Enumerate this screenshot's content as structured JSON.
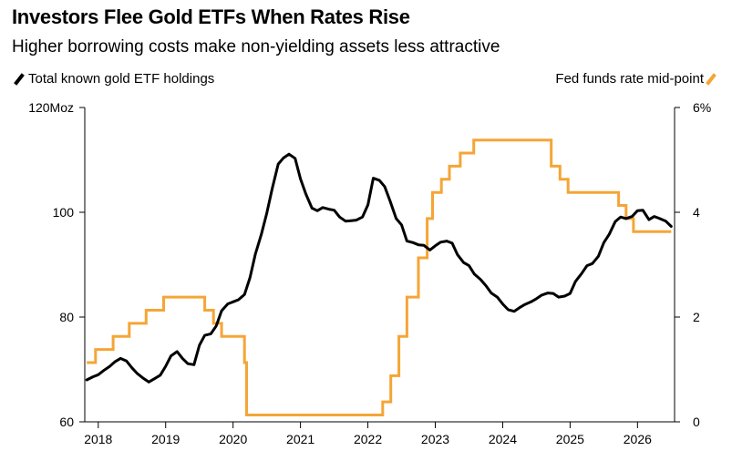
{
  "title": "Investors Flee Gold ETFs When Rates Rise",
  "subtitle": "Higher borrowing costs make non-yielding assets less attractive",
  "colors": {
    "gold_etf": "#000000",
    "fed_rate": "#f5a536",
    "axis": "#000000"
  },
  "chart_data": {
    "type": "line",
    "title": "Investors Flee Gold ETFs When Rates Rise",
    "subtitle": "Higher borrowing costs make non-yielding assets less attractive",
    "x_range": [
      2017.8,
      2026.55
    ],
    "x_ticks": [
      2018,
      2019,
      2020,
      2021,
      2022,
      2023,
      2024,
      2025,
      2026
    ],
    "x_tick_labels": [
      "2018",
      "2019",
      "2020",
      "2021",
      "2022",
      "2023",
      "2024",
      "2025",
      "2026"
    ],
    "y_left": {
      "range": [
        60,
        120
      ],
      "ticks": [
        60,
        80,
        100,
        120
      ],
      "tick_labels": [
        "60",
        "80",
        "100",
        "120Moz"
      ]
    },
    "y_right": {
      "range": [
        0,
        6
      ],
      "ticks": [
        0,
        2,
        4,
        6
      ],
      "tick_labels": [
        "0",
        "2",
        "4",
        "6%"
      ]
    },
    "grid": false,
    "legend": [
      {
        "name": "Total known gold ETF holdings",
        "position": "top-left"
      },
      {
        "name": "Fed funds rate mid-point",
        "position": "top-right"
      }
    ],
    "series": [
      {
        "name": "Total known gold ETF holdings",
        "axis": "left",
        "x": [
          2017.83,
          2017.92,
          2018.0,
          2018.08,
          2018.17,
          2018.25,
          2018.33,
          2018.42,
          2018.5,
          2018.58,
          2018.67,
          2018.75,
          2018.83,
          2018.92,
          2019.0,
          2019.08,
          2019.17,
          2019.25,
          2019.33,
          2019.42,
          2019.5,
          2019.58,
          2019.67,
          2019.75,
          2019.83,
          2019.92,
          2020.0,
          2020.08,
          2020.17,
          2020.25,
          2020.33,
          2020.42,
          2020.5,
          2020.58,
          2020.67,
          2020.75,
          2020.83,
          2020.92,
          2021.0,
          2021.08,
          2021.17,
          2021.25,
          2021.33,
          2021.42,
          2021.5,
          2021.58,
          2021.67,
          2021.75,
          2021.83,
          2021.92,
          2022.0,
          2022.08,
          2022.17,
          2022.25,
          2022.33,
          2022.42,
          2022.5,
          2022.58,
          2022.67,
          2022.75,
          2022.83,
          2022.92,
          2023.0,
          2023.08,
          2023.17,
          2023.25,
          2023.33,
          2023.42,
          2023.5,
          2023.58,
          2023.67,
          2023.75,
          2023.83,
          2023.92,
          2024.0,
          2024.08,
          2024.17,
          2024.25,
          2024.33,
          2024.42,
          2024.5,
          2024.58,
          2024.67,
          2024.75,
          2024.83,
          2024.92,
          2025.0,
          2025.08,
          2025.17,
          2025.25,
          2025.33,
          2025.42,
          2025.5,
          2025.58,
          2025.67,
          2025.75,
          2025.83,
          2025.92,
          2026.0,
          2026.08,
          2026.17,
          2026.25,
          2026.33,
          2026.42,
          2026.5
        ],
        "values": [
          68,
          68.6,
          69,
          69.8,
          70.6,
          71.5,
          72.1,
          71.6,
          70.3,
          69.2,
          68.3,
          67.6,
          68.2,
          68.9,
          70.6,
          72.6,
          73.4,
          72.1,
          71.1,
          70.9,
          74.6,
          76.5,
          76.8,
          78.3,
          81.2,
          82.5,
          82.9,
          83.3,
          84.3,
          87.5,
          92,
          95.8,
          99.8,
          104.5,
          109.2,
          110.4,
          111.1,
          110.3,
          106.4,
          103.5,
          100.8,
          100.3,
          100.9,
          100.6,
          100.4,
          99.1,
          98.3,
          98.4,
          98.5,
          99.1,
          101.4,
          106.5,
          106.1,
          104.9,
          102.1,
          98.8,
          97.6,
          94.5,
          94.2,
          93.8,
          93.7,
          92.8,
          93.6,
          94.3,
          94.5,
          94.1,
          91.9,
          90.4,
          89.8,
          88.2,
          87.2,
          86,
          84.6,
          83.8,
          82.5,
          81.4,
          81.1,
          81.8,
          82.4,
          82.9,
          83.5,
          84.2,
          84.6,
          84.5,
          83.8,
          84,
          84.5,
          86.8,
          88.3,
          89.8,
          90.2,
          91.6,
          94.2,
          95.8,
          98.2,
          99.1,
          98.8,
          99.2,
          100.3,
          100.4,
          98.6,
          99.2,
          98.8,
          98.3,
          97.3
        ]
      },
      {
        "name": "Fed funds rate mid-point",
        "axis": "right",
        "step": true,
        "x": [
          2017.83,
          2017.96,
          2018.22,
          2018.46,
          2018.71,
          2018.97,
          2019.58,
          2019.71,
          2019.83,
          2020.17,
          2020.2,
          2022.22,
          2022.34,
          2022.46,
          2022.58,
          2022.75,
          2022.88,
          2022.96,
          2023.09,
          2023.21,
          2023.37,
          2023.57,
          2024.72,
          2024.85,
          2024.97,
          2025.72,
          2025.83,
          2025.94,
          2026.5
        ],
        "values": [
          1.13,
          1.38,
          1.63,
          1.88,
          2.13,
          2.38,
          2.13,
          1.88,
          1.63,
          1.13,
          0.13,
          0.38,
          0.88,
          1.63,
          2.38,
          3.13,
          3.88,
          4.38,
          4.63,
          4.88,
          5.13,
          5.38,
          4.88,
          4.63,
          4.38,
          4.13,
          3.88,
          3.63,
          3.63
        ]
      }
    ]
  }
}
